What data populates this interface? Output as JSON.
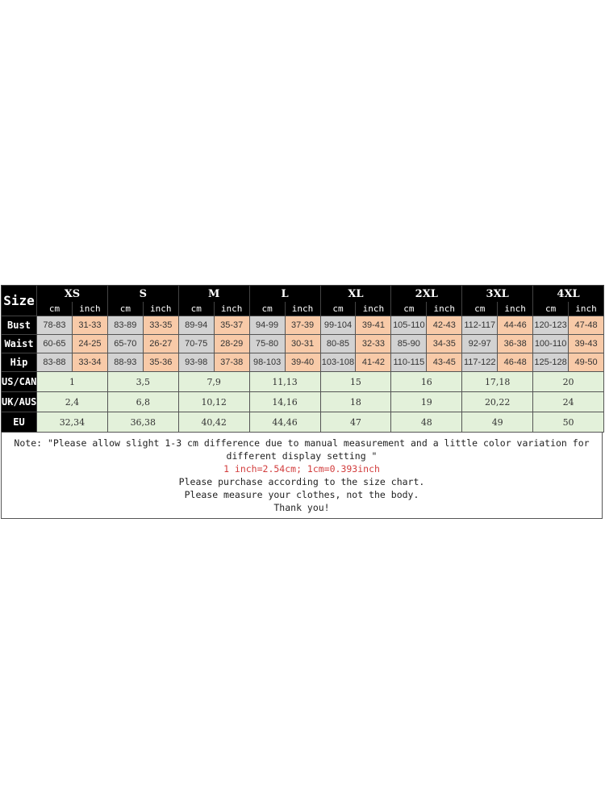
{
  "header": {
    "size_label": "Size",
    "cm": "cm",
    "inch": "inch"
  },
  "sizes": [
    "XS",
    "S",
    "M",
    "L",
    "XL",
    "2XL",
    "3XL",
    "4XL"
  ],
  "measurements": [
    {
      "label": "Bust",
      "values": [
        [
          "78-83",
          "31-33"
        ],
        [
          "83-89",
          "33-35"
        ],
        [
          "89-94",
          "35-37"
        ],
        [
          "94-99",
          "37-39"
        ],
        [
          "99-104",
          "39-41"
        ],
        [
          "105-110",
          "42-43"
        ],
        [
          "112-117",
          "44-46"
        ],
        [
          "120-123",
          "47-48"
        ]
      ]
    },
    {
      "label": "Waist",
      "values": [
        [
          "60-65",
          "24-25"
        ],
        [
          "65-70",
          "26-27"
        ],
        [
          "70-75",
          "28-29"
        ],
        [
          "75-80",
          "30-31"
        ],
        [
          "80-85",
          "32-33"
        ],
        [
          "85-90",
          "34-35"
        ],
        [
          "92-97",
          "36-38"
        ],
        [
          "100-110",
          "39-43"
        ]
      ]
    },
    {
      "label": "Hip",
      "values": [
        [
          "83-88",
          "33-34"
        ],
        [
          "88-93",
          "35-36"
        ],
        [
          "93-98",
          "37-38"
        ],
        [
          "98-103",
          "39-40"
        ],
        [
          "103-108",
          "41-42"
        ],
        [
          "110-115",
          "43-45"
        ],
        [
          "117-122",
          "46-48"
        ],
        [
          "125-128",
          "49-50"
        ]
      ]
    }
  ],
  "conversions": [
    {
      "label": "US/CAN",
      "values": [
        "1",
        "3,5",
        "7,9",
        "11,13",
        "15",
        "16",
        "17,18",
        "20"
      ]
    },
    {
      "label": "UK/AUS",
      "values": [
        "2,4",
        "6,8",
        "10,12",
        "14,16",
        "18",
        "19",
        "20,22",
        "24"
      ]
    },
    {
      "label": "EU",
      "values": [
        "32,34",
        "36,38",
        "40,42",
        "44,46",
        "47",
        "48",
        "49",
        "50"
      ]
    }
  ],
  "note": {
    "line1": "Note:  \"Please allow slight 1-3 cm difference due to manual measurement and a little color variation for",
    "line2": "different display setting  \"",
    "conversion": "1 inch=2.54cm; 1cm=0.393inch",
    "line3": "Please purchase according to the size chart.",
    "line4": "Please measure your clothes, not the body.",
    "line5": "Thank you!"
  },
  "colors": {
    "header": "#000000",
    "cm_cell": "#d2d2d2",
    "inch_cell": "#f8caa8",
    "conversion_cell": "#e3f1da",
    "unit_text": "#c9a25a",
    "conversion_text": "#d23c3c"
  }
}
